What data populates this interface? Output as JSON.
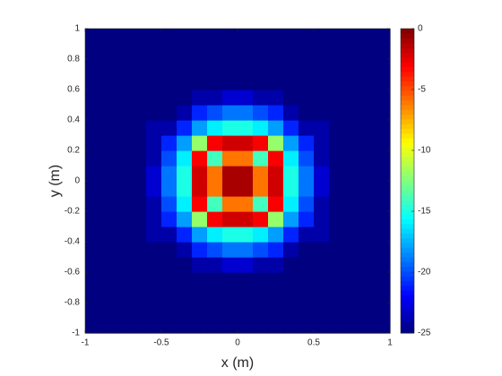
{
  "chart_data": {
    "type": "heatmap",
    "xlabel": "x (m)",
    "ylabel": "y (m)",
    "xlim": [
      -1,
      1
    ],
    "ylim": [
      -1,
      1
    ],
    "xticks": [
      -1,
      -0.5,
      0,
      0.5,
      1
    ],
    "yticks": [
      -1,
      -0.8,
      -0.6,
      -0.4,
      -0.2,
      0,
      0.2,
      0.4,
      0.6,
      0.8,
      1
    ],
    "colormap": "jet",
    "clim": [
      -25,
      0
    ],
    "cticks": [
      -25,
      -20,
      -15,
      -10,
      -5,
      0
    ],
    "z": [
      [
        -25,
        -25,
        -25,
        -25,
        -25,
        -25,
        -25,
        -25,
        -25,
        -25,
        -25,
        -25,
        -25,
        -25,
        -25,
        -25,
        -25,
        -25,
        -25,
        -25
      ],
      [
        -25,
        -25,
        -25,
        -25,
        -25,
        -25,
        -25,
        -25,
        -25,
        -25,
        -25,
        -25,
        -25,
        -25,
        -25,
        -25,
        -25,
        -25,
        -25,
        -25
      ],
      [
        -25,
        -25,
        -25,
        -25,
        -25,
        -25,
        -25,
        -25,
        -25,
        -25,
        -25,
        -25,
        -25,
        -25,
        -25,
        -25,
        -25,
        -25,
        -25,
        -25
      ],
      [
        -25,
        -25,
        -25,
        -25,
        -25,
        -25,
        -25,
        -25,
        -25,
        -25,
        -25,
        -25,
        -25,
        -25,
        -25,
        -25,
        -25,
        -25,
        -25,
        -25
      ],
      [
        -25,
        -25,
        -25,
        -25,
        -25,
        -25,
        -25,
        -24,
        -24,
        -23,
        -23,
        -24,
        -24,
        -25,
        -25,
        -25,
        -25,
        -25,
        -25,
        -25
      ],
      [
        -25,
        -25,
        -25,
        -25,
        -25,
        -25,
        -24,
        -21,
        -20,
        -19,
        -19,
        -20,
        -21,
        -24,
        -25,
        -25,
        -25,
        -25,
        -25,
        -25
      ],
      [
        -25,
        -25,
        -25,
        -25,
        -24,
        -24,
        -21,
        -18,
        -16,
        -15,
        -15,
        -16,
        -18,
        -21,
        -24,
        -24,
        -25,
        -25,
        -25,
        -25
      ],
      [
        -25,
        -25,
        -25,
        -25,
        -24,
        -21,
        -18,
        -12,
        -3,
        -2,
        -2,
        -3,
        -12,
        -18,
        -21,
        -24,
        -25,
        -25,
        -25,
        -25
      ],
      [
        -25,
        -25,
        -25,
        -25,
        -24,
        -20,
        -16,
        -3,
        -14,
        -6,
        -6,
        -14,
        -3,
        -16,
        -20,
        -24,
        -25,
        -25,
        -25,
        -25
      ],
      [
        -25,
        -25,
        -25,
        -25,
        -23,
        -19,
        -15,
        -2,
        -6,
        -1,
        -1,
        -6,
        -2,
        -15,
        -19,
        -23,
        -25,
        -25,
        -25,
        -25
      ],
      [
        -25,
        -25,
        -25,
        -25,
        -23,
        -19,
        -15,
        -2,
        -6,
        -1,
        -1,
        -6,
        -2,
        -15,
        -19,
        -23,
        -25,
        -25,
        -25,
        -25
      ],
      [
        -25,
        -25,
        -25,
        -25,
        -24,
        -20,
        -16,
        -3,
        -14,
        -6,
        -6,
        -14,
        -3,
        -16,
        -20,
        -24,
        -25,
        -25,
        -25,
        -25
      ],
      [
        -25,
        -25,
        -25,
        -25,
        -24,
        -21,
        -18,
        -12,
        -3,
        -2,
        -2,
        -3,
        -12,
        -18,
        -21,
        -24,
        -25,
        -25,
        -25,
        -25
      ],
      [
        -25,
        -25,
        -25,
        -25,
        -24,
        -24,
        -21,
        -18,
        -16,
        -15,
        -15,
        -16,
        -18,
        -21,
        -24,
        -24,
        -25,
        -25,
        -25,
        -25
      ],
      [
        -25,
        -25,
        -25,
        -25,
        -25,
        -25,
        -24,
        -21,
        -20,
        -19,
        -19,
        -20,
        -21,
        -24,
        -25,
        -25,
        -25,
        -25,
        -25,
        -25
      ],
      [
        -25,
        -25,
        -25,
        -25,
        -25,
        -25,
        -25,
        -24,
        -24,
        -23,
        -23,
        -24,
        -24,
        -25,
        -25,
        -25,
        -25,
        -25,
        -25,
        -25
      ],
      [
        -25,
        -25,
        -25,
        -25,
        -25,
        -25,
        -25,
        -25,
        -25,
        -25,
        -25,
        -25,
        -25,
        -25,
        -25,
        -25,
        -25,
        -25,
        -25,
        -25
      ],
      [
        -25,
        -25,
        -25,
        -25,
        -25,
        -25,
        -25,
        -25,
        -25,
        -25,
        -25,
        -25,
        -25,
        -25,
        -25,
        -25,
        -25,
        -25,
        -25,
        -25
      ],
      [
        -25,
        -25,
        -25,
        -25,
        -25,
        -25,
        -25,
        -25,
        -25,
        -25,
        -25,
        -25,
        -25,
        -25,
        -25,
        -25,
        -25,
        -25,
        -25,
        -25
      ],
      [
        -25,
        -25,
        -25,
        -25,
        -25,
        -25,
        -25,
        -25,
        -25,
        -25,
        -25,
        -25,
        -25,
        -25,
        -25,
        -25,
        -25,
        -25,
        -25,
        -25
      ]
    ]
  }
}
